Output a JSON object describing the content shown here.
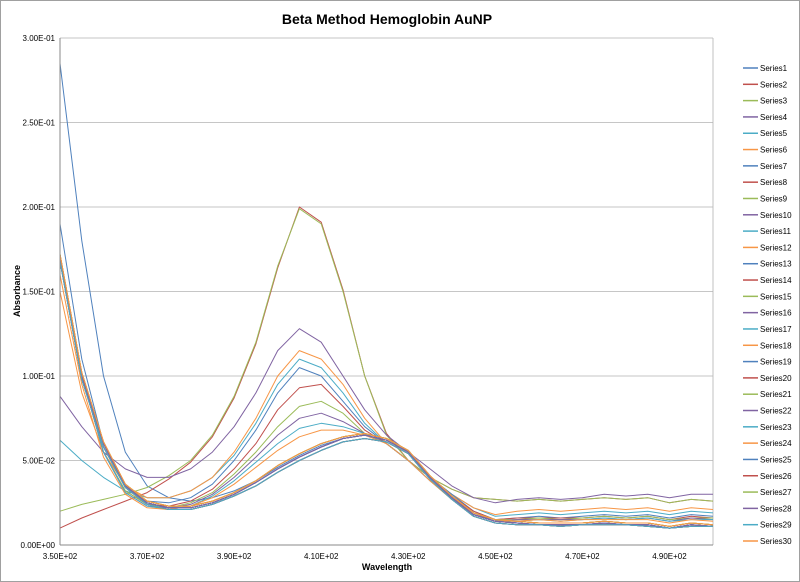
{
  "chart_data": {
    "type": "line",
    "title": "Beta Method Hemoglobin AuNP",
    "xlabel": "Wavelength",
    "ylabel": "Absorbance",
    "xlim": [
      350,
      500
    ],
    "ylim": [
      0,
      0.3
    ],
    "xticks": [
      350,
      370,
      390,
      410,
      430,
      450,
      470,
      490
    ],
    "xtick_labels": [
      "3.50E+02",
      "3.70E+02",
      "3.90E+02",
      "4.10E+02",
      "4.30E+02",
      "4.50E+02",
      "4.70E+02",
      "4.90E+02"
    ],
    "yticks": [
      0,
      0.05,
      0.1,
      0.15,
      0.2,
      0.25,
      0.3
    ],
    "ytick_labels": [
      "0.00E+00",
      "5.00E-02",
      "1.00E-01",
      "1.50E-01",
      "2.00E-01",
      "2.50E-01",
      "3.00E-01"
    ],
    "grid": "horizontal",
    "legend": "right",
    "colors": [
      "#4F81BD",
      "#C0504D",
      "#9BBB59",
      "#8064A2",
      "#4BACC6",
      "#F79646"
    ],
    "x": [
      350,
      355,
      360,
      365,
      370,
      375,
      380,
      385,
      390,
      395,
      400,
      405,
      410,
      415,
      420,
      425,
      430,
      435,
      440,
      445,
      450,
      455,
      460,
      465,
      470,
      475,
      480,
      485,
      490,
      495,
      500
    ],
    "series": [
      {
        "name": "Series1",
        "values": [
          0.285,
          0.18,
          0.1,
          0.055,
          0.035,
          0.028,
          0.026,
          0.028,
          0.032,
          0.038,
          0.046,
          0.053,
          0.059,
          0.063,
          0.065,
          0.062,
          0.055,
          0.04,
          0.028,
          0.018,
          0.014,
          0.013,
          0.012,
          0.012,
          0.012,
          0.013,
          0.012,
          0.012,
          0.01,
          0.012,
          0.011
        ]
      },
      {
        "name": "Series2",
        "values": [
          0.01,
          0.016,
          0.021,
          0.026,
          0.031,
          0.039,
          0.049,
          0.064,
          0.087,
          0.119,
          0.164,
          0.2,
          0.191,
          0.151,
          0.1,
          0.066,
          0.05,
          0.04,
          0.033,
          0.028,
          0.027,
          0.026,
          0.027,
          0.026,
          0.027,
          0.028,
          0.027,
          0.028,
          0.025,
          0.027,
          0.026
        ]
      },
      {
        "name": "Series3",
        "values": [
          0.02,
          0.024,
          0.027,
          0.03,
          0.034,
          0.041,
          0.05,
          0.065,
          0.088,
          0.12,
          0.165,
          0.199,
          0.19,
          0.15,
          0.1,
          0.065,
          0.05,
          0.04,
          0.033,
          0.028,
          0.027,
          0.026,
          0.027,
          0.026,
          0.027,
          0.028,
          0.027,
          0.028,
          0.025,
          0.027,
          0.026
        ]
      },
      {
        "name": "Series4",
        "values": [
          0.088,
          0.07,
          0.055,
          0.045,
          0.04,
          0.04,
          0.045,
          0.055,
          0.07,
          0.09,
          0.115,
          0.128,
          0.12,
          0.1,
          0.08,
          0.065,
          0.055,
          0.045,
          0.035,
          0.028,
          0.025,
          0.027,
          0.028,
          0.027,
          0.028,
          0.03,
          0.029,
          0.03,
          0.028,
          0.03,
          0.03
        ]
      },
      {
        "name": "Series5",
        "values": [
          0.062,
          0.05,
          0.04,
          0.032,
          0.028,
          0.028,
          0.032,
          0.04,
          0.053,
          0.072,
          0.095,
          0.11,
          0.105,
          0.09,
          0.072,
          0.06,
          0.05,
          0.04,
          0.03,
          0.022,
          0.017,
          0.018,
          0.019,
          0.018,
          0.019,
          0.02,
          0.019,
          0.02,
          0.018,
          0.02,
          0.019
        ]
      },
      {
        "name": "Series6",
        "values": [
          0.15,
          0.09,
          0.055,
          0.035,
          0.028,
          0.028,
          0.032,
          0.04,
          0.055,
          0.075,
          0.1,
          0.115,
          0.11,
          0.095,
          0.075,
          0.06,
          0.05,
          0.04,
          0.03,
          0.022,
          0.018,
          0.02,
          0.021,
          0.02,
          0.021,
          0.022,
          0.021,
          0.022,
          0.02,
          0.022,
          0.021
        ]
      },
      {
        "name": "Series7",
        "values": [
          0.19,
          0.11,
          0.06,
          0.035,
          0.026,
          0.025,
          0.028,
          0.036,
          0.05,
          0.068,
          0.09,
          0.105,
          0.1,
          0.085,
          0.07,
          0.06,
          0.05,
          0.04,
          0.03,
          0.02,
          0.015,
          0.016,
          0.017,
          0.016,
          0.017,
          0.018,
          0.017,
          0.018,
          0.016,
          0.018,
          0.017
        ]
      },
      {
        "name": "Series8",
        "values": [
          0.17,
          0.1,
          0.055,
          0.032,
          0.024,
          0.023,
          0.026,
          0.033,
          0.045,
          0.06,
          0.08,
          0.093,
          0.095,
          0.082,
          0.068,
          0.06,
          0.05,
          0.04,
          0.029,
          0.02,
          0.015,
          0.016,
          0.016,
          0.016,
          0.016,
          0.017,
          0.016,
          0.017,
          0.015,
          0.017,
          0.016
        ]
      },
      {
        "name": "Series9",
        "values": [
          0.17,
          0.1,
          0.055,
          0.032,
          0.024,
          0.022,
          0.025,
          0.031,
          0.042,
          0.055,
          0.07,
          0.082,
          0.085,
          0.078,
          0.066,
          0.06,
          0.05,
          0.04,
          0.028,
          0.019,
          0.015,
          0.015,
          0.016,
          0.015,
          0.016,
          0.017,
          0.016,
          0.017,
          0.015,
          0.016,
          0.016
        ]
      },
      {
        "name": "Series10",
        "values": [
          0.17,
          0.1,
          0.055,
          0.031,
          0.023,
          0.022,
          0.024,
          0.03,
          0.04,
          0.052,
          0.065,
          0.075,
          0.078,
          0.073,
          0.066,
          0.06,
          0.05,
          0.038,
          0.028,
          0.019,
          0.014,
          0.015,
          0.015,
          0.015,
          0.015,
          0.016,
          0.015,
          0.016,
          0.014,
          0.016,
          0.015
        ]
      },
      {
        "name": "Series11",
        "values": [
          0.17,
          0.1,
          0.055,
          0.031,
          0.023,
          0.021,
          0.023,
          0.029,
          0.038,
          0.049,
          0.06,
          0.069,
          0.072,
          0.07,
          0.066,
          0.06,
          0.05,
          0.038,
          0.027,
          0.018,
          0.014,
          0.014,
          0.015,
          0.014,
          0.015,
          0.016,
          0.015,
          0.016,
          0.014,
          0.015,
          0.015
        ]
      },
      {
        "name": "Series12",
        "values": [
          0.16,
          0.095,
          0.052,
          0.03,
          0.022,
          0.021,
          0.023,
          0.028,
          0.036,
          0.046,
          0.056,
          0.064,
          0.068,
          0.068,
          0.065,
          0.06,
          0.05,
          0.038,
          0.027,
          0.018,
          0.014,
          0.014,
          0.015,
          0.014,
          0.015,
          0.015,
          0.015,
          0.015,
          0.013,
          0.015,
          0.014
        ]
      },
      {
        "name": "Series13",
        "values": [
          0.17,
          0.1,
          0.06,
          0.035,
          0.025,
          0.022,
          0.022,
          0.025,
          0.03,
          0.037,
          0.045,
          0.052,
          0.058,
          0.063,
          0.065,
          0.062,
          0.055,
          0.04,
          0.028,
          0.018,
          0.014,
          0.013,
          0.012,
          0.012,
          0.012,
          0.013,
          0.012,
          0.012,
          0.01,
          0.012,
          0.011
        ]
      },
      {
        "name": "Series14",
        "values": [
          0.168,
          0.098,
          0.058,
          0.034,
          0.024,
          0.021,
          0.021,
          0.024,
          0.029,
          0.035,
          0.043,
          0.05,
          0.056,
          0.061,
          0.063,
          0.061,
          0.054,
          0.039,
          0.027,
          0.017,
          0.013,
          0.012,
          0.012,
          0.011,
          0.012,
          0.012,
          0.012,
          0.011,
          0.01,
          0.011,
          0.011
        ]
      },
      {
        "name": "Series15",
        "values": [
          0.172,
          0.102,
          0.061,
          0.036,
          0.026,
          0.023,
          0.023,
          0.026,
          0.031,
          0.038,
          0.047,
          0.054,
          0.06,
          0.064,
          0.066,
          0.063,
          0.056,
          0.041,
          0.029,
          0.019,
          0.015,
          0.014,
          0.013,
          0.013,
          0.013,
          0.014,
          0.013,
          0.013,
          0.011,
          0.013,
          0.012
        ]
      },
      {
        "name": "Series16",
        "values": [
          0.17,
          0.1,
          0.06,
          0.035,
          0.025,
          0.022,
          0.022,
          0.025,
          0.03,
          0.037,
          0.045,
          0.052,
          0.058,
          0.063,
          0.065,
          0.062,
          0.055,
          0.04,
          0.028,
          0.018,
          0.014,
          0.013,
          0.012,
          0.012,
          0.012,
          0.013,
          0.012,
          0.012,
          0.01,
          0.012,
          0.011
        ]
      },
      {
        "name": "Series17",
        "values": [
          0.168,
          0.098,
          0.058,
          0.034,
          0.024,
          0.021,
          0.021,
          0.024,
          0.029,
          0.035,
          0.043,
          0.05,
          0.056,
          0.061,
          0.063,
          0.061,
          0.054,
          0.039,
          0.027,
          0.017,
          0.013,
          0.012,
          0.012,
          0.011,
          0.012,
          0.012,
          0.012,
          0.011,
          0.01,
          0.011,
          0.011
        ]
      },
      {
        "name": "Series18",
        "values": [
          0.172,
          0.102,
          0.061,
          0.036,
          0.026,
          0.023,
          0.023,
          0.026,
          0.031,
          0.038,
          0.047,
          0.054,
          0.06,
          0.064,
          0.066,
          0.063,
          0.056,
          0.041,
          0.029,
          0.019,
          0.015,
          0.014,
          0.013,
          0.013,
          0.013,
          0.014,
          0.013,
          0.013,
          0.011,
          0.013,
          0.012
        ]
      },
      {
        "name": "Series19",
        "values": [
          0.17,
          0.1,
          0.06,
          0.035,
          0.025,
          0.022,
          0.022,
          0.025,
          0.03,
          0.037,
          0.045,
          0.052,
          0.058,
          0.063,
          0.065,
          0.062,
          0.055,
          0.04,
          0.028,
          0.018,
          0.014,
          0.013,
          0.012,
          0.012,
          0.012,
          0.013,
          0.012,
          0.012,
          0.01,
          0.012,
          0.011
        ]
      },
      {
        "name": "Series20",
        "values": [
          0.168,
          0.098,
          0.058,
          0.034,
          0.024,
          0.021,
          0.021,
          0.024,
          0.029,
          0.035,
          0.043,
          0.05,
          0.056,
          0.061,
          0.063,
          0.061,
          0.054,
          0.039,
          0.027,
          0.017,
          0.013,
          0.012,
          0.012,
          0.011,
          0.012,
          0.012,
          0.012,
          0.011,
          0.01,
          0.011,
          0.011
        ]
      },
      {
        "name": "Series21",
        "values": [
          0.172,
          0.102,
          0.061,
          0.036,
          0.026,
          0.023,
          0.023,
          0.026,
          0.031,
          0.038,
          0.047,
          0.054,
          0.06,
          0.064,
          0.066,
          0.063,
          0.056,
          0.041,
          0.029,
          0.019,
          0.015,
          0.014,
          0.013,
          0.013,
          0.013,
          0.014,
          0.013,
          0.013,
          0.011,
          0.013,
          0.012
        ]
      },
      {
        "name": "Series22",
        "values": [
          0.17,
          0.1,
          0.06,
          0.035,
          0.025,
          0.022,
          0.022,
          0.025,
          0.03,
          0.037,
          0.045,
          0.052,
          0.058,
          0.063,
          0.065,
          0.062,
          0.055,
          0.04,
          0.028,
          0.018,
          0.014,
          0.013,
          0.012,
          0.012,
          0.012,
          0.013,
          0.012,
          0.012,
          0.01,
          0.012,
          0.011
        ]
      },
      {
        "name": "Series23",
        "values": [
          0.168,
          0.098,
          0.058,
          0.034,
          0.024,
          0.021,
          0.021,
          0.024,
          0.029,
          0.035,
          0.043,
          0.05,
          0.056,
          0.061,
          0.063,
          0.061,
          0.054,
          0.039,
          0.027,
          0.017,
          0.013,
          0.012,
          0.012,
          0.011,
          0.012,
          0.012,
          0.012,
          0.011,
          0.01,
          0.011,
          0.011
        ]
      },
      {
        "name": "Series24",
        "values": [
          0.172,
          0.102,
          0.061,
          0.036,
          0.026,
          0.023,
          0.023,
          0.026,
          0.031,
          0.038,
          0.047,
          0.054,
          0.06,
          0.064,
          0.066,
          0.063,
          0.056,
          0.041,
          0.029,
          0.019,
          0.015,
          0.014,
          0.013,
          0.013,
          0.013,
          0.014,
          0.013,
          0.013,
          0.011,
          0.013,
          0.012
        ]
      },
      {
        "name": "Series25",
        "values": [
          0.17,
          0.1,
          0.06,
          0.035,
          0.025,
          0.022,
          0.022,
          0.025,
          0.03,
          0.037,
          0.045,
          0.052,
          0.058,
          0.063,
          0.065,
          0.062,
          0.055,
          0.04,
          0.028,
          0.018,
          0.014,
          0.013,
          0.012,
          0.012,
          0.012,
          0.013,
          0.012,
          0.012,
          0.01,
          0.012,
          0.011
        ]
      },
      {
        "name": "Series26",
        "values": [
          0.168,
          0.098,
          0.058,
          0.034,
          0.024,
          0.021,
          0.021,
          0.024,
          0.029,
          0.035,
          0.043,
          0.05,
          0.056,
          0.061,
          0.063,
          0.061,
          0.054,
          0.039,
          0.027,
          0.017,
          0.013,
          0.012,
          0.012,
          0.011,
          0.012,
          0.012,
          0.012,
          0.011,
          0.01,
          0.011,
          0.011
        ]
      },
      {
        "name": "Series27",
        "values": [
          0.172,
          0.102,
          0.061,
          0.036,
          0.026,
          0.023,
          0.023,
          0.026,
          0.031,
          0.038,
          0.047,
          0.054,
          0.06,
          0.064,
          0.066,
          0.063,
          0.056,
          0.041,
          0.029,
          0.019,
          0.015,
          0.014,
          0.013,
          0.013,
          0.013,
          0.014,
          0.013,
          0.013,
          0.011,
          0.013,
          0.012
        ]
      },
      {
        "name": "Series28",
        "values": [
          0.17,
          0.1,
          0.06,
          0.035,
          0.025,
          0.022,
          0.022,
          0.025,
          0.03,
          0.037,
          0.045,
          0.052,
          0.058,
          0.063,
          0.065,
          0.062,
          0.055,
          0.04,
          0.028,
          0.018,
          0.014,
          0.013,
          0.012,
          0.012,
          0.012,
          0.013,
          0.012,
          0.012,
          0.01,
          0.012,
          0.011
        ]
      },
      {
        "name": "Series29",
        "values": [
          0.168,
          0.098,
          0.058,
          0.034,
          0.024,
          0.021,
          0.021,
          0.024,
          0.029,
          0.035,
          0.043,
          0.05,
          0.056,
          0.061,
          0.063,
          0.061,
          0.054,
          0.039,
          0.027,
          0.017,
          0.013,
          0.012,
          0.012,
          0.011,
          0.012,
          0.012,
          0.012,
          0.011,
          0.01,
          0.011,
          0.011
        ]
      },
      {
        "name": "Series30",
        "values": [
          0.172,
          0.102,
          0.061,
          0.036,
          0.026,
          0.023,
          0.023,
          0.026,
          0.031,
          0.038,
          0.047,
          0.054,
          0.06,
          0.064,
          0.066,
          0.063,
          0.056,
          0.041,
          0.029,
          0.019,
          0.015,
          0.014,
          0.013,
          0.013,
          0.013,
          0.014,
          0.013,
          0.013,
          0.011,
          0.013,
          0.012
        ]
      }
    ]
  }
}
